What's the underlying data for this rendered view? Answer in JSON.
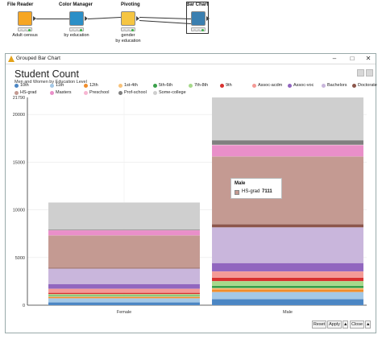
{
  "workflow": {
    "nodes": [
      {
        "title": "File Reader",
        "caption": "Adult census",
        "icon": "file-reader-icon",
        "color": "#f6a623"
      },
      {
        "title": "Color Manager",
        "caption": "by education",
        "icon": "color-manager-icon",
        "color": "#2b8fc7"
      },
      {
        "title": "Pivoting",
        "caption": "gender\nby education",
        "icon": "pivoting-icon",
        "color": "#f5c542"
      },
      {
        "title": "Bar Chart",
        "caption": "",
        "icon": "bar-chart-icon",
        "color": "#3b7fb0"
      }
    ]
  },
  "window": {
    "title": "Grouped Bar Chart",
    "controls": {
      "minimize": "–",
      "maximize": "□",
      "close": "✕"
    }
  },
  "chart": {
    "title": "Student Count",
    "subtitle": "Men and Women by Education Level"
  },
  "tooltip": {
    "group": "Male",
    "category": "HS-grad",
    "value": "7111",
    "color": "#c49a92"
  },
  "footer": {
    "reset": "Reset",
    "apply": "Apply",
    "close": "Close",
    "up_arrow": "▲"
  },
  "chart_data": {
    "type": "bar",
    "stacked": true,
    "categories": [
      "Female",
      "Male"
    ],
    "ylim": [
      0,
      21790
    ],
    "y_max_label": "21790",
    "yticks": [
      "0",
      "5000",
      "10000",
      "15000",
      "20000"
    ],
    "xlabel": "",
    "ylabel": "",
    "grid": true,
    "legend_position": "top",
    "series": [
      {
        "name": "10th",
        "color": "#4b86c4",
        "values": [
          295,
          638
        ]
      },
      {
        "name": "11th",
        "color": "#a4c8e6",
        "values": [
          432,
          743
        ]
      },
      {
        "name": "12th",
        "color": "#f08d2b",
        "values": [
          144,
          289
        ]
      },
      {
        "name": "1st-4th",
        "color": "#f8c27a",
        "values": [
          46,
          122
        ]
      },
      {
        "name": "5th-6th",
        "color": "#3aa04a",
        "values": [
          84,
          249
        ]
      },
      {
        "name": "7th-8th",
        "color": "#a6d98a",
        "values": [
          160,
          486
        ]
      },
      {
        "name": "9th",
        "color": "#d8312f",
        "values": [
          144,
          370
        ]
      },
      {
        "name": "Assoc-acdm",
        "color": "#f49a96",
        "values": [
          421,
          646
        ]
      },
      {
        "name": "Assoc-voc",
        "color": "#9166bf",
        "values": [
          500,
          882
        ]
      },
      {
        "name": "Bachelors",
        "color": "#c9b6dc",
        "values": [
          1619,
          3736
        ]
      },
      {
        "name": "Doctorate",
        "color": "#8c564b",
        "values": [
          86,
          327
        ]
      },
      {
        "name": "HS-grad",
        "color": "#c49a92",
        "values": [
          3390,
          7111
        ]
      },
      {
        "name": "Masters",
        "color": "#e98fc9",
        "values": [
          536,
          1187
        ]
      },
      {
        "name": "Preschool",
        "color": "#f7b6d2",
        "values": [
          16,
          35
        ]
      },
      {
        "name": "Prof-school",
        "color": "#7f7f7f",
        "values": [
          92,
          484
        ]
      },
      {
        "name": "Some-college",
        "color": "#cfcfcf",
        "values": [
          2806,
          4485
        ]
      }
    ]
  }
}
